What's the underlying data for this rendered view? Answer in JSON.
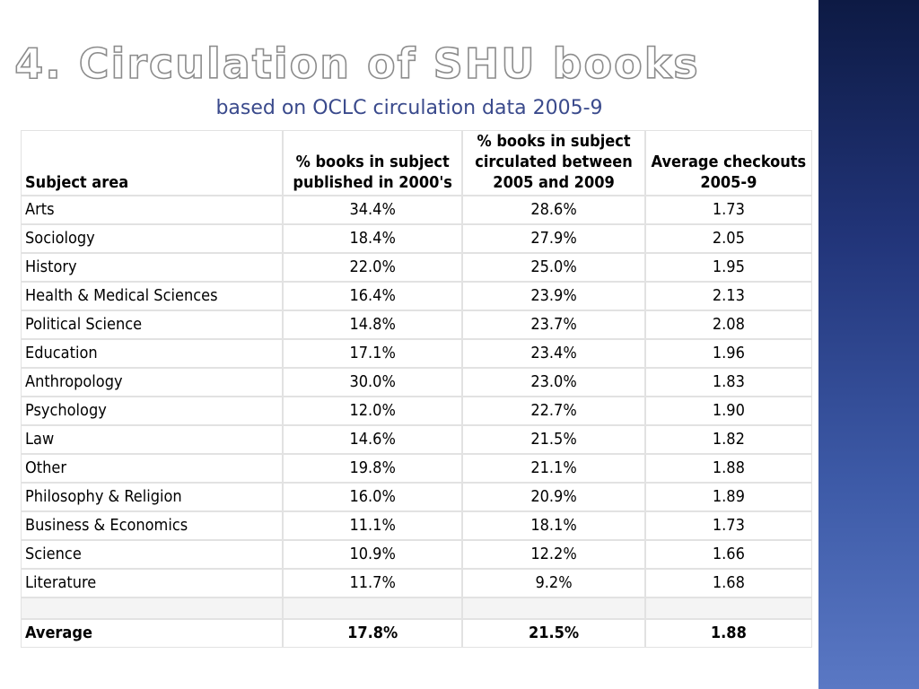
{
  "slide": {
    "title": "4. Circulation of SHU books",
    "subtitle": "based on OCLC circulation data 2005-9"
  },
  "table": {
    "headers": {
      "subject": "Subject area",
      "published": "% books in subject published in 2000's",
      "circulated": "% books in subject circulated between 2005 and 2009",
      "checkouts": "Average checkouts 2005-9"
    },
    "rows": [
      {
        "subject": "Arts",
        "published": "34.4%",
        "circulated": "28.6%",
        "checkouts": "1.73"
      },
      {
        "subject": "Sociology",
        "published": "18.4%",
        "circulated": "27.9%",
        "checkouts": "2.05"
      },
      {
        "subject": "History",
        "published": "22.0%",
        "circulated": "25.0%",
        "checkouts": "1.95"
      },
      {
        "subject": "Health & Medical Sciences",
        "published": "16.4%",
        "circulated": "23.9%",
        "checkouts": "2.13"
      },
      {
        "subject": "Political Science",
        "published": "14.8%",
        "circulated": "23.7%",
        "checkouts": "2.08"
      },
      {
        "subject": "Education",
        "published": "17.1%",
        "circulated": "23.4%",
        "checkouts": "1.96"
      },
      {
        "subject": "Anthropology",
        "published": "30.0%",
        "circulated": "23.0%",
        "checkouts": "1.83"
      },
      {
        "subject": "Psychology",
        "published": "12.0%",
        "circulated": "22.7%",
        "checkouts": "1.90"
      },
      {
        "subject": "Law",
        "published": "14.6%",
        "circulated": "21.5%",
        "checkouts": "1.82"
      },
      {
        "subject": "Other",
        "published": "19.8%",
        "circulated": "21.1%",
        "checkouts": "1.88"
      },
      {
        "subject": "Philosophy & Religion",
        "published": "16.0%",
        "circulated": "20.9%",
        "checkouts": "1.89"
      },
      {
        "subject": "Business & Economics",
        "published": "11.1%",
        "circulated": "18.1%",
        "checkouts": "1.73"
      },
      {
        "subject": "Science",
        "published": "10.9%",
        "circulated": "12.2%",
        "checkouts": "1.66"
      },
      {
        "subject": "Literature",
        "published": "11.7%",
        "circulated": "9.2%",
        "checkouts": "1.68"
      }
    ],
    "average": {
      "subject": "Average",
      "published": "17.8%",
      "circulated": "21.5%",
      "checkouts": "1.88"
    }
  }
}
